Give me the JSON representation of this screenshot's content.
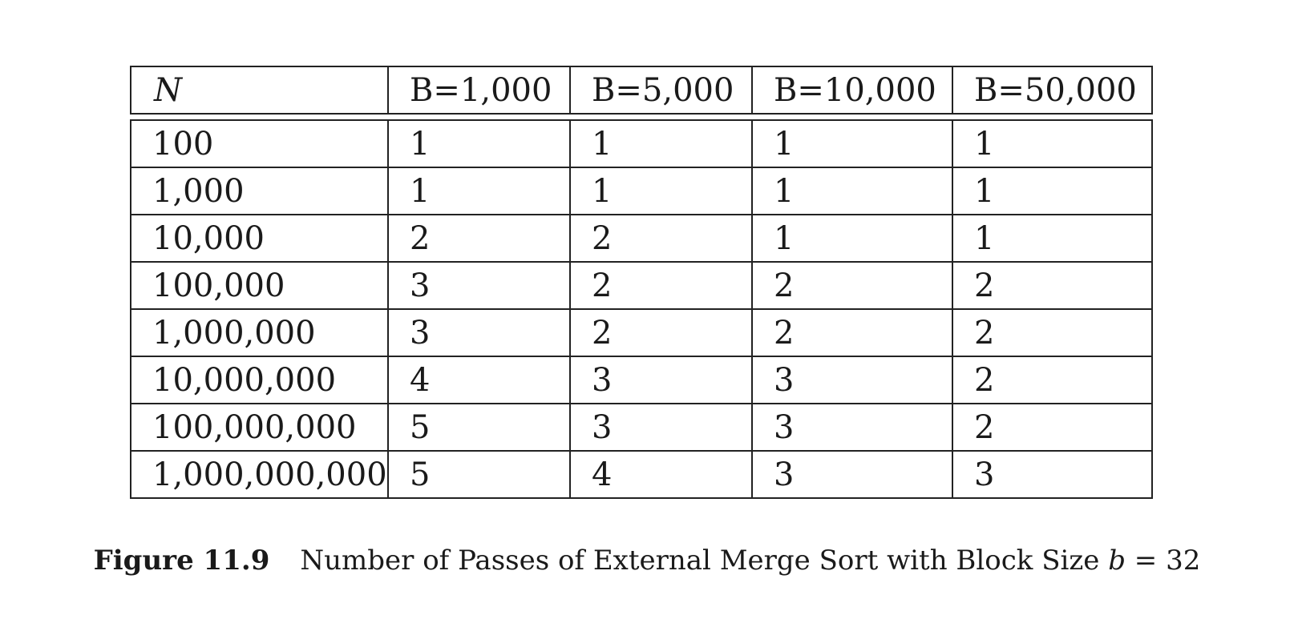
{
  "table": {
    "headers": [
      "N",
      "B=1,000",
      "B=5,000",
      "B=10,000",
      "B=50,000"
    ],
    "rows": [
      [
        "100",
        "1",
        "1",
        "1",
        "1"
      ],
      [
        "1,000",
        "1",
        "1",
        "1",
        "1"
      ],
      [
        "10,000",
        "2",
        "2",
        "1",
        "1"
      ],
      [
        "100,000",
        "3",
        "2",
        "2",
        "2"
      ],
      [
        "1,000,000",
        "3",
        "2",
        "2",
        "2"
      ],
      [
        "10,000,000",
        "4",
        "3",
        "3",
        "2"
      ],
      [
        "100,000,000",
        "5",
        "3",
        "3",
        "2"
      ],
      [
        "1,000,000,000",
        "5",
        "4",
        "3",
        "3"
      ]
    ]
  },
  "caption": {
    "label": "Figure 11.9",
    "text": "Number of Passes of External Merge Sort with Block Size",
    "math_var": "b",
    "math_rest": " = 32"
  }
}
